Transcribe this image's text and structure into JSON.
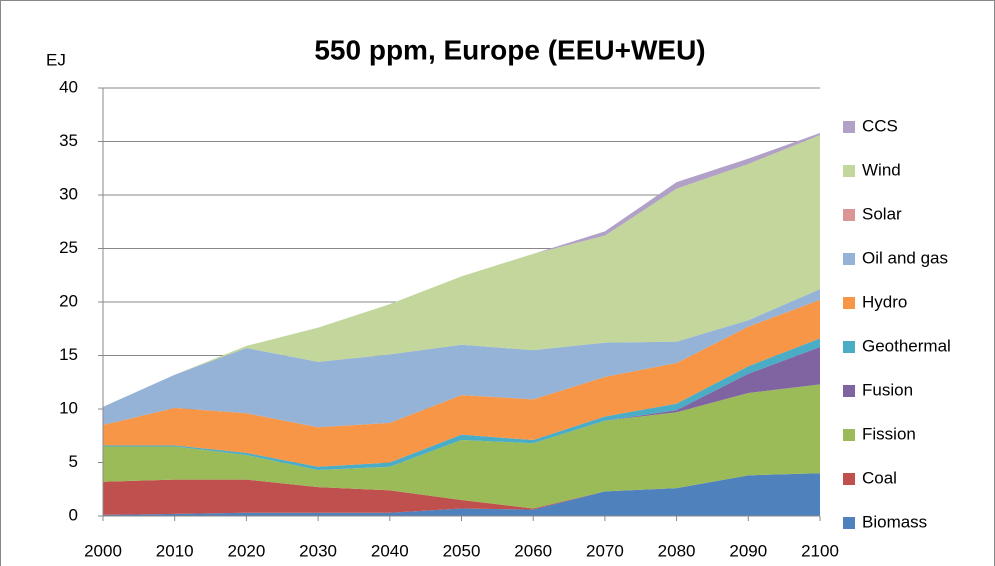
{
  "chart_data": {
    "type": "stacked_area",
    "title": "550 ppm, Europe (EEU+WEU)",
    "y_label": "EJ",
    "x": [
      2000,
      2010,
      2020,
      2030,
      2040,
      2050,
      2060,
      2070,
      2080,
      2090,
      2100
    ],
    "xlim": [
      2000,
      2100
    ],
    "xticks": [
      2000,
      2010,
      2020,
      2030,
      2040,
      2050,
      2060,
      2070,
      2080,
      2090,
      2100
    ],
    "ylim": [
      0,
      40
    ],
    "yticks": [
      0,
      5,
      10,
      15,
      20,
      25,
      30,
      35,
      40
    ],
    "grid": true,
    "legend": "right",
    "series": [
      {
        "name": "Biomass",
        "color": "#4f81bd",
        "values": [
          0.1,
          0.2,
          0.3,
          0.3,
          0.3,
          0.7,
          0.6,
          2.3,
          2.6,
          3.8,
          4.0
        ]
      },
      {
        "name": "Coal",
        "color": "#c0504d",
        "values": [
          3.1,
          3.2,
          3.1,
          2.4,
          2.1,
          0.8,
          0.1,
          0,
          0,
          0,
          0
        ]
      },
      {
        "name": "Fission",
        "color": "#9bbb59",
        "values": [
          3.3,
          3.1,
          2.3,
          1.6,
          2.2,
          5.6,
          6.1,
          6.6,
          7.1,
          7.7,
          8.3
        ]
      },
      {
        "name": "Fusion",
        "color": "#8064a2",
        "values": [
          0,
          0,
          0,
          0,
          0,
          0,
          0,
          0,
          0.2,
          1.8,
          3.5
        ]
      },
      {
        "name": "Geothermal",
        "color": "#4bacc6",
        "values": [
          0.1,
          0.1,
          0.2,
          0.3,
          0.4,
          0.5,
          0.3,
          0.4,
          0.6,
          0.7,
          0.8
        ]
      },
      {
        "name": "Hydro",
        "color": "#f79646",
        "values": [
          1.9,
          3.5,
          3.7,
          3.7,
          3.7,
          3.7,
          3.8,
          3.7,
          3.8,
          3.7,
          3.6
        ]
      },
      {
        "name": "Oil and gas",
        "color": "#95b3d7",
        "values": [
          1.7,
          3.1,
          6.1,
          6.1,
          6.4,
          4.7,
          4.6,
          3.2,
          2.0,
          0.6,
          1.0
        ]
      },
      {
        "name": "Solar",
        "color": "#d99694",
        "values": [
          0,
          0,
          0,
          0,
          0,
          0,
          0,
          0,
          0,
          0,
          0
        ]
      },
      {
        "name": "Wind",
        "color": "#c3d69b",
        "values": [
          0,
          0,
          0.2,
          3.2,
          4.7,
          6.4,
          9.0,
          10.0,
          14.3,
          14.6,
          14.4
        ]
      },
      {
        "name": "CCS",
        "color": "#b2a1c7",
        "values": [
          0,
          0,
          0,
          0,
          0,
          0,
          0,
          0.4,
          0.6,
          0.5,
          0.2
        ]
      }
    ]
  }
}
